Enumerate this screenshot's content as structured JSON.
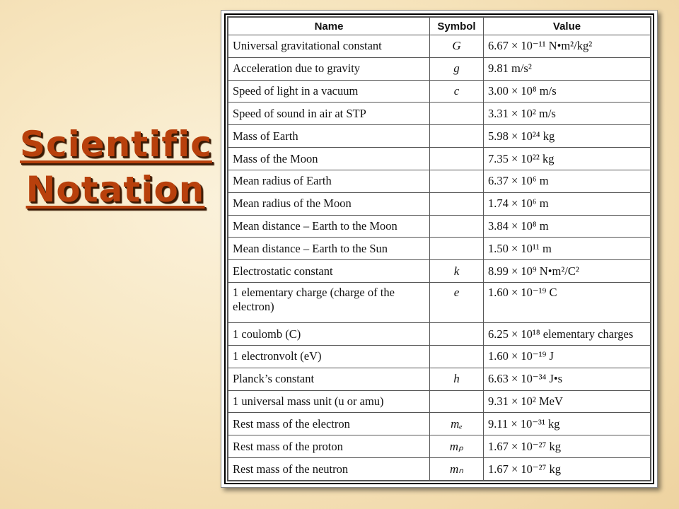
{
  "title": {
    "line1": "Scientific",
    "line2": "Notation"
  },
  "table": {
    "headers": [
      "Name",
      "Symbol",
      "Value"
    ],
    "rows": [
      {
        "name": "Universal gravitational constant",
        "symbol": "G",
        "value": "6.67 × 10⁻¹¹ N•m²/kg²"
      },
      {
        "name": "Acceleration due to gravity",
        "symbol": "g",
        "value": "9.81 m/s²"
      },
      {
        "name": "Speed of light in a vacuum",
        "symbol": "c",
        "value": "3.00 × 10⁸ m/s"
      },
      {
        "name": "Speed of sound in air at STP",
        "symbol": "",
        "value": "3.31 × 10² m/s"
      },
      {
        "name": "Mass of Earth",
        "symbol": "",
        "value": "5.98 × 10²⁴ kg"
      },
      {
        "name": "Mass of the Moon",
        "symbol": "",
        "value": "7.35 × 10²² kg"
      },
      {
        "name": "Mean radius of Earth",
        "symbol": "",
        "value": "6.37 × 10⁶ m"
      },
      {
        "name": "Mean radius of the Moon",
        "symbol": "",
        "value": "1.74 × 10⁶ m"
      },
      {
        "name": "Mean distance – Earth to the Moon",
        "symbol": "",
        "value": "3.84 × 10⁸ m"
      },
      {
        "name": "Mean distance – Earth to the Sun",
        "symbol": "",
        "value": "1.50 × 10¹¹ m"
      },
      {
        "name": "Electrostatic constant",
        "symbol": "k",
        "value": "8.99 × 10⁹ N•m²/C²"
      },
      {
        "name": "1 elementary charge (charge of the electron)",
        "symbol": "e",
        "value": "1.60 × 10⁻¹⁹ C"
      },
      {
        "name": "1 coulomb (C)",
        "symbol": "",
        "value": "6.25 × 10¹⁸ elementary charges"
      },
      {
        "name": "1 electronvolt (eV)",
        "symbol": "",
        "value": "1.60 × 10⁻¹⁹ J"
      },
      {
        "name": "Planck’s constant",
        "symbol": "h",
        "value": "6.63 × 10⁻³⁴ J•s"
      },
      {
        "name": "1 universal mass unit (u or amu)",
        "symbol": "",
        "value": "9.31 × 10² MeV"
      },
      {
        "name": "Rest mass of the electron",
        "symbol": "mₑ",
        "value": "9.11 × 10⁻³¹ kg"
      },
      {
        "name": "Rest mass of the proton",
        "symbol": "mₚ",
        "value": "1.67 × 10⁻²⁷ kg"
      },
      {
        "name": "Rest mass of the neutron",
        "symbol": "mₙ",
        "value": "1.67 × 10⁻²⁷ kg"
      }
    ]
  }
}
